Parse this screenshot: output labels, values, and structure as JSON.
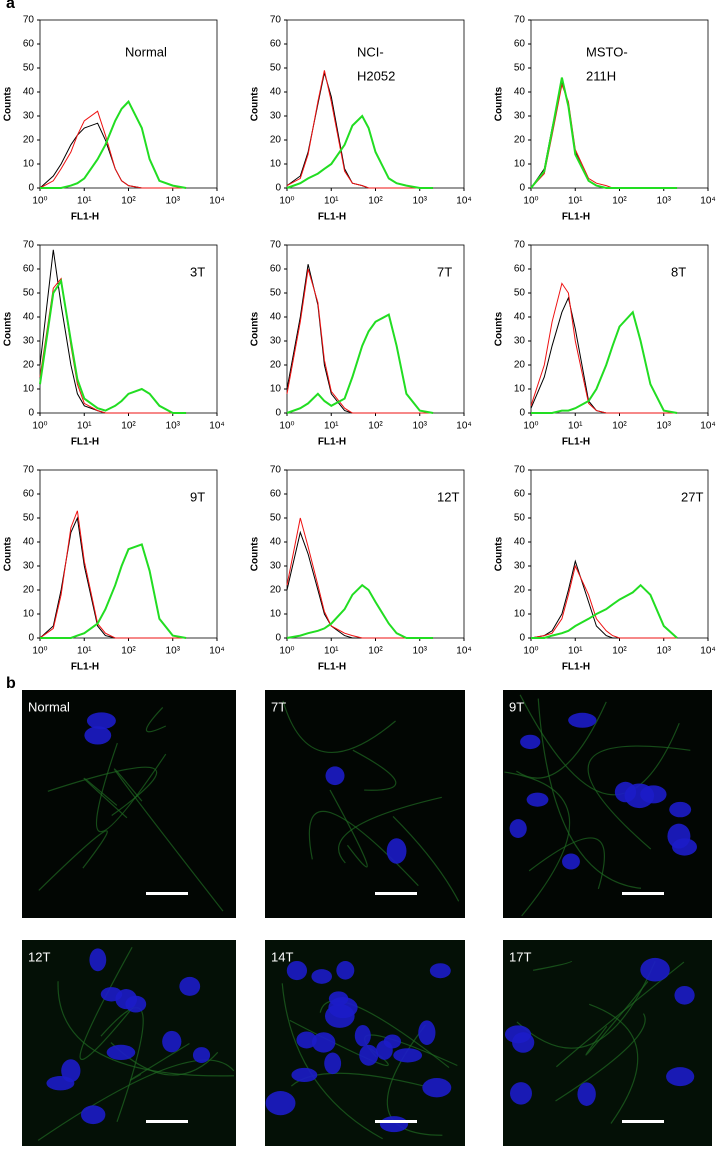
{
  "figure": {
    "panel_labels": [
      "a",
      "b"
    ],
    "images": [
      {
        "label": "Normal"
      },
      {
        "label": "7T"
      },
      {
        "label": "9T"
      },
      {
        "label": "12T"
      },
      {
        "label": "14T"
      },
      {
        "label": "17T"
      }
    ]
  },
  "chart_data": [
    {
      "type": "line",
      "annotation": [
        "Normal"
      ],
      "xlabel": "FL1-H",
      "ylabel": "Counts",
      "log_x": true,
      "x": [
        1,
        2,
        3,
        5,
        7,
        10,
        20,
        30,
        50,
        70,
        100,
        200,
        300,
        500,
        1000,
        2000
      ],
      "series": [
        {
          "color": "#000000",
          "values": [
            0,
            5,
            10,
            18,
            22,
            25,
            27,
            20,
            8,
            3,
            1,
            0,
            0,
            0,
            0,
            0
          ]
        },
        {
          "color": "#ee1111",
          "values": [
            0,
            3,
            8,
            15,
            22,
            28,
            32,
            22,
            8,
            3,
            1,
            0,
            0,
            0,
            0,
            0
          ]
        },
        {
          "color": "#22dd22",
          "values": [
            0,
            0,
            0,
            1,
            2,
            4,
            12,
            18,
            28,
            33,
            36,
            25,
            12,
            3,
            1,
            0
          ]
        }
      ],
      "xlim": [
        1,
        10000
      ],
      "ylim": [
        0,
        70
      ],
      "xticks": [
        {
          "value": 1,
          "label": "10⁰"
        },
        {
          "value": 10,
          "label": "10¹"
        },
        {
          "value": 100,
          "label": "10²"
        },
        {
          "value": 1000,
          "label": "10³"
        },
        {
          "value": 10000,
          "label": "10⁴"
        }
      ],
      "yticks": [
        0,
        10,
        20,
        30,
        40,
        50,
        60,
        70
      ]
    },
    {
      "type": "line",
      "annotation": [
        "NCI-",
        "H2052"
      ],
      "xlabel": "FL1-H",
      "ylabel": "Counts",
      "log_x": true,
      "x": [
        1,
        2,
        3,
        5,
        7,
        10,
        20,
        30,
        50,
        70,
        100,
        200,
        300,
        500,
        1000,
        2000
      ],
      "series": [
        {
          "color": "#000000",
          "values": [
            1,
            5,
            15,
            35,
            48,
            38,
            8,
            2,
            1,
            0,
            0,
            0,
            0,
            0,
            0,
            0
          ]
        },
        {
          "color": "#ee1111",
          "values": [
            1,
            4,
            14,
            36,
            49,
            36,
            7,
            2,
            1,
            0,
            0,
            0,
            0,
            0,
            0,
            0
          ]
        },
        {
          "color": "#22dd22",
          "values": [
            0,
            2,
            4,
            6,
            8,
            10,
            18,
            26,
            30,
            25,
            15,
            4,
            2,
            1,
            0,
            0
          ]
        }
      ],
      "xlim": [
        1,
        10000
      ],
      "ylim": [
        0,
        70
      ],
      "xticks": [
        {
          "value": 1,
          "label": "10⁰"
        },
        {
          "value": 10,
          "label": "10¹"
        },
        {
          "value": 100,
          "label": "10²"
        },
        {
          "value": 1000,
          "label": "10³"
        },
        {
          "value": 10000,
          "label": "10⁴"
        }
      ],
      "yticks": [
        0,
        10,
        20,
        30,
        40,
        50,
        60,
        70
      ]
    },
    {
      "type": "line",
      "annotation": [
        "MSTO-",
        "211H"
      ],
      "xlabel": "FL1-H",
      "ylabel": "Counts",
      "log_x": true,
      "x": [
        1,
        2,
        3,
        5,
        7,
        10,
        20,
        30,
        50,
        70,
        100,
        200,
        300,
        500,
        1000,
        2000
      ],
      "series": [
        {
          "color": "#000000",
          "values": [
            0,
            8,
            25,
            44,
            35,
            15,
            3,
            1,
            0,
            0,
            0,
            0,
            0,
            0,
            0,
            0
          ]
        },
        {
          "color": "#ee1111",
          "values": [
            0,
            6,
            22,
            43,
            36,
            16,
            4,
            2,
            1,
            0,
            0,
            0,
            0,
            0,
            0,
            0
          ]
        },
        {
          "color": "#22dd22",
          "values": [
            0,
            7,
            24,
            46,
            34,
            14,
            3,
            1,
            0,
            0,
            0,
            0,
            0,
            0,
            0,
            0
          ]
        }
      ],
      "xlim": [
        1,
        10000
      ],
      "ylim": [
        0,
        70
      ],
      "xticks": [
        {
          "value": 1,
          "label": "10⁰"
        },
        {
          "value": 10,
          "label": "10¹"
        },
        {
          "value": 100,
          "label": "10²"
        },
        {
          "value": 1000,
          "label": "10³"
        },
        {
          "value": 10000,
          "label": "10⁴"
        }
      ],
      "yticks": [
        0,
        10,
        20,
        30,
        40,
        50,
        60,
        70
      ]
    },
    {
      "type": "line",
      "annotation": [
        "3T"
      ],
      "xlabel": "FL1-H",
      "ylabel": "Counts",
      "log_x": true,
      "x": [
        1,
        2,
        3,
        5,
        7,
        10,
        20,
        30,
        50,
        70,
        100,
        200,
        300,
        500,
        1000,
        2000
      ],
      "series": [
        {
          "color": "#000000",
          "values": [
            20,
            68,
            45,
            20,
            8,
            3,
            1,
            0,
            0,
            0,
            0,
            0,
            0,
            0,
            0,
            0
          ]
        },
        {
          "color": "#ee1111",
          "values": [
            15,
            52,
            56,
            28,
            12,
            4,
            1,
            0,
            0,
            0,
            0,
            0,
            0,
            0,
            0,
            0
          ]
        },
        {
          "color": "#22dd22",
          "values": [
            12,
            50,
            55,
            30,
            14,
            6,
            2,
            1,
            3,
            5,
            8,
            10,
            8,
            3,
            0,
            0
          ]
        }
      ],
      "xlim": [
        1,
        10000
      ],
      "ylim": [
        0,
        70
      ],
      "xticks": [
        {
          "value": 1,
          "label": "10⁰"
        },
        {
          "value": 10,
          "label": "10¹"
        },
        {
          "value": 100,
          "label": "10²"
        },
        {
          "value": 1000,
          "label": "10³"
        },
        {
          "value": 10000,
          "label": "10⁴"
        }
      ],
      "yticks": [
        0,
        10,
        20,
        30,
        40,
        50,
        60,
        70
      ]
    },
    {
      "type": "line",
      "annotation": [
        "7T"
      ],
      "xlabel": "FL1-H",
      "ylabel": "Counts",
      "log_x": true,
      "x": [
        1,
        2,
        3,
        5,
        7,
        10,
        20,
        30,
        50,
        70,
        100,
        200,
        300,
        500,
        1000,
        2000
      ],
      "series": [
        {
          "color": "#000000",
          "values": [
            10,
            40,
            62,
            45,
            20,
            8,
            1,
            0,
            0,
            0,
            0,
            0,
            0,
            0,
            0,
            0
          ]
        },
        {
          "color": "#ee1111",
          "values": [
            8,
            38,
            60,
            46,
            22,
            9,
            2,
            0,
            0,
            0,
            0,
            0,
            0,
            0,
            0,
            0
          ]
        },
        {
          "color": "#22dd22",
          "values": [
            0,
            2,
            4,
            8,
            5,
            3,
            6,
            15,
            28,
            34,
            38,
            41,
            28,
            8,
            1,
            0
          ]
        }
      ],
      "xlim": [
        1,
        10000
      ],
      "ylim": [
        0,
        70
      ],
      "xticks": [
        {
          "value": 1,
          "label": "10⁰"
        },
        {
          "value": 10,
          "label": "10¹"
        },
        {
          "value": 100,
          "label": "10²"
        },
        {
          "value": 1000,
          "label": "10³"
        },
        {
          "value": 10000,
          "label": "10⁴"
        }
      ],
      "yticks": [
        0,
        10,
        20,
        30,
        40,
        50,
        60,
        70
      ]
    },
    {
      "type": "line",
      "annotation": [
        "8T"
      ],
      "xlabel": "FL1-H",
      "ylabel": "Counts",
      "log_x": true,
      "x": [
        1,
        2,
        3,
        5,
        7,
        10,
        20,
        30,
        50,
        70,
        100,
        200,
        300,
        500,
        1000,
        2000
      ],
      "series": [
        {
          "color": "#000000",
          "values": [
            2,
            15,
            28,
            42,
            48,
            35,
            5,
            1,
            0,
            0,
            0,
            0,
            0,
            0,
            0,
            0
          ]
        },
        {
          "color": "#ee1111",
          "values": [
            3,
            20,
            38,
            54,
            50,
            30,
            4,
            1,
            0,
            0,
            0,
            0,
            0,
            0,
            0,
            0
          ]
        },
        {
          "color": "#22dd22",
          "values": [
            0,
            0,
            0,
            1,
            1,
            2,
            5,
            10,
            20,
            28,
            36,
            42,
            30,
            12,
            1,
            0
          ]
        }
      ],
      "xlim": [
        1,
        10000
      ],
      "ylim": [
        0,
        70
      ],
      "xticks": [
        {
          "value": 1,
          "label": "10⁰"
        },
        {
          "value": 10,
          "label": "10¹"
        },
        {
          "value": 100,
          "label": "10²"
        },
        {
          "value": 1000,
          "label": "10³"
        },
        {
          "value": 10000,
          "label": "10⁴"
        }
      ],
      "yticks": [
        0,
        10,
        20,
        30,
        40,
        50,
        60,
        70
      ]
    },
    {
      "type": "line",
      "annotation": [
        "9T"
      ],
      "xlabel": "FL1-H",
      "ylabel": "Counts",
      "log_x": true,
      "x": [
        1,
        2,
        3,
        5,
        7,
        10,
        20,
        30,
        50,
        70,
        100,
        200,
        300,
        500,
        1000,
        2000
      ],
      "series": [
        {
          "color": "#000000",
          "values": [
            0,
            5,
            20,
            44,
            50,
            30,
            5,
            1,
            0,
            0,
            0,
            0,
            0,
            0,
            0,
            0
          ]
        },
        {
          "color": "#ee1111",
          "values": [
            0,
            4,
            18,
            46,
            53,
            32,
            6,
            2,
            0,
            0,
            0,
            0,
            0,
            0,
            0,
            0
          ]
        },
        {
          "color": "#22dd22",
          "values": [
            0,
            0,
            0,
            0,
            1,
            2,
            6,
            12,
            22,
            30,
            37,
            39,
            28,
            8,
            1,
            0
          ]
        }
      ],
      "xlim": [
        1,
        10000
      ],
      "ylim": [
        0,
        70
      ],
      "xticks": [
        {
          "value": 1,
          "label": "10⁰"
        },
        {
          "value": 10,
          "label": "10¹"
        },
        {
          "value": 100,
          "label": "10²"
        },
        {
          "value": 1000,
          "label": "10³"
        },
        {
          "value": 10000,
          "label": "10⁴"
        }
      ],
      "yticks": [
        0,
        10,
        20,
        30,
        40,
        50,
        60,
        70
      ]
    },
    {
      "type": "line",
      "annotation": [
        "12T"
      ],
      "xlabel": "FL1-H",
      "ylabel": "Counts",
      "log_x": true,
      "x": [
        1,
        2,
        3,
        5,
        7,
        10,
        20,
        30,
        50,
        70,
        100,
        200,
        300,
        500,
        1000,
        2000
      ],
      "series": [
        {
          "color": "#000000",
          "values": [
            20,
            44,
            35,
            20,
            10,
            5,
            1,
            0,
            0,
            0,
            0,
            0,
            0,
            0,
            0,
            0
          ]
        },
        {
          "color": "#ee1111",
          "values": [
            22,
            50,
            38,
            22,
            11,
            5,
            2,
            1,
            0,
            0,
            0,
            0,
            0,
            0,
            0,
            0
          ]
        },
        {
          "color": "#22dd22",
          "values": [
            0,
            1,
            2,
            3,
            4,
            6,
            12,
            18,
            22,
            20,
            15,
            6,
            2,
            0,
            0,
            0
          ]
        }
      ],
      "xlim": [
        1,
        10000
      ],
      "ylim": [
        0,
        70
      ],
      "xticks": [
        {
          "value": 1,
          "label": "10⁰"
        },
        {
          "value": 10,
          "label": "10¹"
        },
        {
          "value": 100,
          "label": "10²"
        },
        {
          "value": 1000,
          "label": "10³"
        },
        {
          "value": 10000,
          "label": "10⁴"
        }
      ],
      "yticks": [
        0,
        10,
        20,
        30,
        40,
        50,
        60,
        70
      ]
    },
    {
      "type": "line",
      "annotation": [
        "27T"
      ],
      "xlabel": "FL1-H",
      "ylabel": "Counts",
      "log_x": true,
      "x": [
        1,
        2,
        3,
        5,
        7,
        10,
        20,
        30,
        50,
        70,
        100,
        200,
        300,
        500,
        1000,
        2000
      ],
      "series": [
        {
          "color": "#000000",
          "values": [
            0,
            1,
            3,
            10,
            20,
            32,
            15,
            5,
            1,
            0,
            0,
            0,
            0,
            0,
            0,
            0
          ]
        },
        {
          "color": "#ee1111",
          "values": [
            0,
            1,
            2,
            8,
            18,
            30,
            18,
            8,
            3,
            1,
            0,
            0,
            0,
            0,
            0,
            0
          ]
        },
        {
          "color": "#22dd22",
          "values": [
            0,
            0,
            1,
            2,
            3,
            5,
            8,
            10,
            12,
            14,
            16,
            19,
            22,
            18,
            5,
            0
          ]
        }
      ],
      "xlim": [
        1,
        10000
      ],
      "ylim": [
        0,
        70
      ],
      "xticks": [
        {
          "value": 1,
          "label": "10⁰"
        },
        {
          "value": 10,
          "label": "10¹"
        },
        {
          "value": 100,
          "label": "10²"
        },
        {
          "value": 1000,
          "label": "10³"
        },
        {
          "value": 10000,
          "label": "10⁴"
        }
      ],
      "yticks": [
        0,
        10,
        20,
        30,
        40,
        50,
        60,
        70
      ]
    }
  ]
}
